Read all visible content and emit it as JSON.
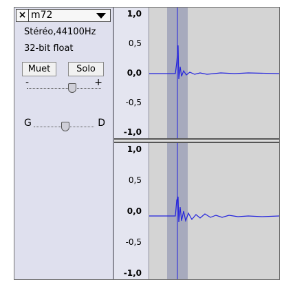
{
  "track": {
    "name": "m72",
    "close_symbol": "×",
    "format": "Stéréo,44100Hz",
    "bitdepth": "32-bit float",
    "mute_label": "Muet",
    "solo_label": "Solo",
    "gain_minus": "-",
    "gain_plus": "+",
    "pan_left": "G",
    "pan_right": "D",
    "gain_level": 0.6,
    "pan_level": 0.5
  },
  "ruler_top": [
    "1,0",
    "0,5",
    "0,0",
    "-0,5",
    "-1,0"
  ],
  "ruler_bottom": [
    "1,0",
    "0,5",
    "0,0",
    "-0,5",
    "-1,0"
  ],
  "colors": {
    "waveform": "#2222dd",
    "selection": "#9fa2b8",
    "panel_bg": "#dfe0ee"
  },
  "icons": [
    "close-icon",
    "chevron-down-icon"
  ]
}
